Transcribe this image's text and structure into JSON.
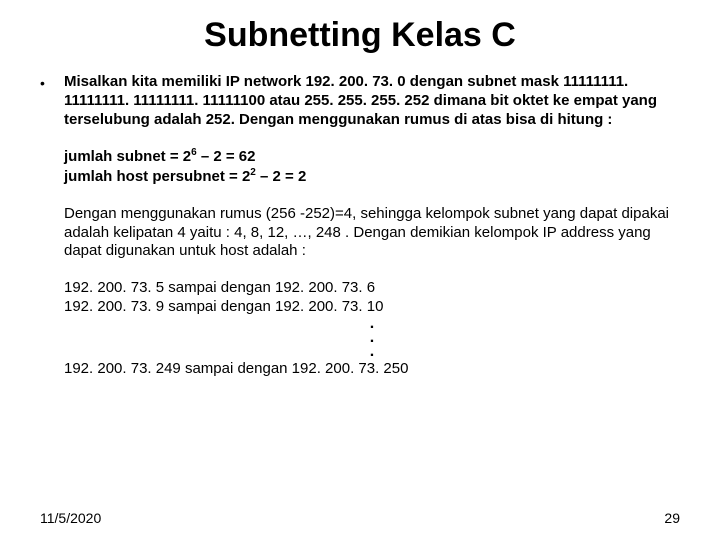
{
  "title": "Subnetting Kelas C",
  "bullet": "•",
  "p1": "Misalkan kita memiliki IP network 192. 200. 73. 0 dengan subnet mask 11111111. 11111111. 11111111. 11111100 atau 255. 255. 255. 252 dimana bit oktet ke empat yang terselubung adalah 252. Dengan menggunakan rumus di atas bisa di hitung :",
  "subnet_label": "jumlah subnet = 2",
  "subnet_exp": "6",
  "subnet_tail": " – 2 = 62",
  "host_label": "jumlah host persubnet = 2",
  "host_exp": "2",
  "host_tail": " – 2 = 2",
  "p2": "Dengan menggunakan rumus (256 -252)=4, sehingga kelompok subnet yang dapat dipakai adalah kelipatan 4 yaitu : 4, 8, 12, …, 248 . Dengan demikian kelompok IP address yang dapat digunakan untuk host adalah :",
  "ranges": [
    "192. 200. 73. 5 sampai dengan 192. 200. 73. 6",
    "192. 200. 73. 9 sampai dengan 192. 200. 73. 10"
  ],
  "dots": ".",
  "last_range": "192. 200. 73. 249 sampai dengan 192. 200. 73. 250",
  "footer_date": "11/5/2020",
  "footer_page": "29"
}
